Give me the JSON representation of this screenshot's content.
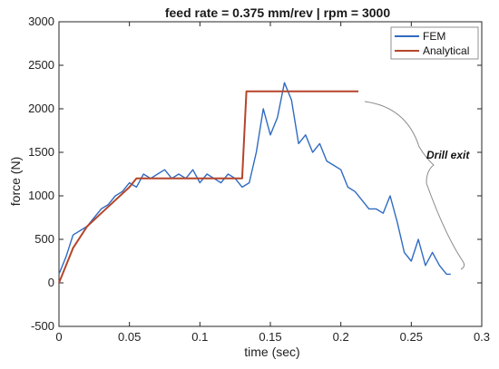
{
  "chart_data": {
    "type": "line",
    "title": "feed rate = 0.375 mm/rev | rpm = 3000",
    "xlabel": "time (sec)",
    "ylabel": "force (N)",
    "xlim": [
      0,
      0.3
    ],
    "ylim": [
      -500,
      3000
    ],
    "xticks": [
      0,
      0.05,
      0.1,
      0.15,
      0.2,
      0.25,
      0.3
    ],
    "xtick_labels": [
      "0",
      "0.05",
      "0.1",
      "0.15",
      "0.2",
      "0.25",
      "0.3"
    ],
    "yticks": [
      -500,
      0,
      500,
      1000,
      1500,
      2000,
      2500,
      3000
    ],
    "ytick_labels": [
      "-500",
      "0",
      "500",
      "1000",
      "1500",
      "2000",
      "2500",
      "3000"
    ],
    "grid": false,
    "legend_position": "top-right",
    "annotation": "Drill exit",
    "series": [
      {
        "name": "FEM",
        "color": "#2f6bc2",
        "x": [
          0,
          0.005,
          0.01,
          0.015,
          0.02,
          0.025,
          0.03,
          0.035,
          0.04,
          0.045,
          0.05,
          0.055,
          0.06,
          0.065,
          0.07,
          0.075,
          0.08,
          0.085,
          0.09,
          0.095,
          0.1,
          0.105,
          0.11,
          0.115,
          0.12,
          0.125,
          0.13,
          0.135,
          0.14,
          0.145,
          0.15,
          0.155,
          0.16,
          0.165,
          0.17,
          0.175,
          0.18,
          0.185,
          0.19,
          0.195,
          0.2,
          0.205,
          0.21,
          0.215,
          0.22,
          0.225,
          0.23,
          0.235,
          0.24,
          0.245,
          0.25,
          0.255,
          0.26,
          0.265,
          0.27,
          0.275,
          0.278
        ],
        "y": [
          100,
          300,
          550,
          600,
          650,
          750,
          850,
          900,
          1000,
          1050,
          1150,
          1100,
          1250,
          1200,
          1250,
          1300,
          1200,
          1250,
          1200,
          1300,
          1150,
          1250,
          1200,
          1150,
          1250,
          1200,
          1100,
          1150,
          1500,
          2000,
          1700,
          1900,
          2300,
          2100,
          1600,
          1700,
          1500,
          1600,
          1400,
          1350,
          1300,
          1100,
          1050,
          950,
          850,
          850,
          800,
          1000,
          700,
          350,
          250,
          500,
          200,
          350,
          200,
          100,
          100
        ]
      },
      {
        "name": "Analytical",
        "color": "#b5452a",
        "x": [
          0,
          0.005,
          0.01,
          0.02,
          0.03,
          0.04,
          0.05,
          0.055,
          0.06,
          0.13,
          0.133,
          0.2125
        ],
        "y": [
          0,
          200,
          400,
          650,
          800,
          950,
          1100,
          1200,
          1200,
          1200,
          2200,
          2200
        ]
      }
    ]
  }
}
